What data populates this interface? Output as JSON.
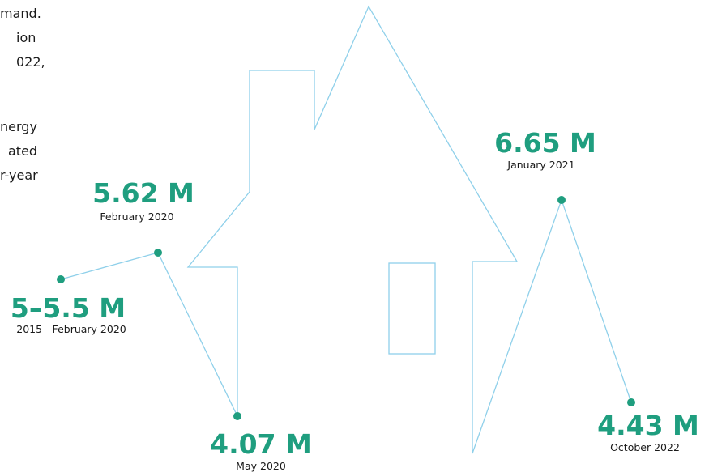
{
  "intro_text": [
    "mand.",
    "ion",
    "022,",
    "nergy",
    "ated",
    "r-year"
  ],
  "points": [
    {
      "value": "5–5.5 M",
      "date": "2015—February 2020"
    },
    {
      "value": "5.62 M",
      "date": "February 2020"
    },
    {
      "value": "4.07 M",
      "date": "May 2020"
    },
    {
      "value": "6.65 M",
      "date": "January 2021"
    },
    {
      "value": "4.43 M",
      "date": "October 2022"
    }
  ]
}
